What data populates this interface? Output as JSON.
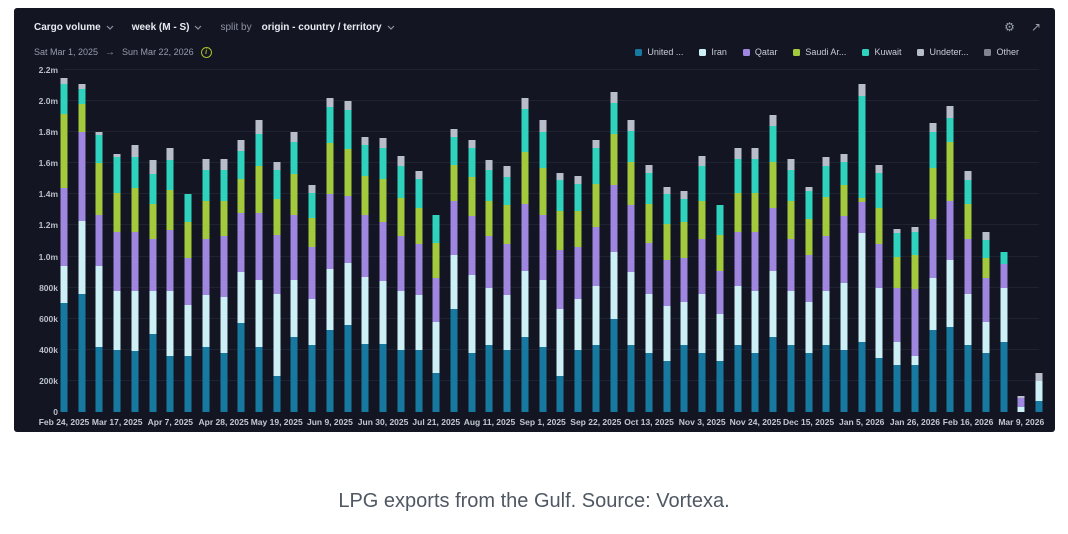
{
  "toolbar": {
    "metric": "Cargo volume",
    "granularity": "week (M - S)",
    "split_by_label": "split by",
    "split_by_value": "origin - country / territory"
  },
  "icons": {
    "gear": "⚙",
    "expand": "↗",
    "info": "i",
    "arrow": "→"
  },
  "date_range": {
    "start": "Sat Mar 1, 2025",
    "end": "Sun Mar 22, 2026"
  },
  "caption": "LPG exports from the Gulf. Source: Vortexa.",
  "colors": {
    "panel_bg": "#131622",
    "accent_green": "#a9bf2a"
  },
  "chart_data": {
    "type": "bar",
    "stacked": true,
    "title": "",
    "xlabel": "",
    "ylabel": "",
    "x_start": "Feb 24, 2025",
    "x_step": "1 week",
    "ylim": [
      0,
      2200000
    ],
    "y_unit_note": "values stored in thousands; axis shows k/m",
    "y_tick_labels": [
      "0",
      "200k",
      "400k",
      "600k",
      "800k",
      "1.0m",
      "1.2m",
      "1.4m",
      "1.6m",
      "1.8m",
      "2.0m",
      "2.2m"
    ],
    "x_tick_labels": [
      "Feb 24, 2025",
      "Mar 17, 2025",
      "Apr 7, 2025",
      "Apr 28, 2025",
      "May 19, 2025",
      "Jun 9, 2025",
      "Jun 30, 2025",
      "Jul 21, 2025",
      "Aug 11, 2025",
      "Sep 1, 2025",
      "Sep 22, 2025",
      "Oct 13, 2025",
      "Nov 3, 2025",
      "Nov 24, 2025",
      "Dec 15, 2025",
      "Jan 5, 2026",
      "Jan 26, 2026",
      "Feb 16, 2026",
      "Mar 9, 2026"
    ],
    "x_tick_every_n_bars": 3,
    "legend_position": "top-right",
    "series": [
      {
        "name": "United ...",
        "color": "#1779a0",
        "values": [
          700,
          760,
          420,
          400,
          390,
          500,
          360,
          360,
          420,
          380,
          570,
          420,
          230,
          480,
          430,
          530,
          560,
          440,
          440,
          400,
          400,
          250,
          660,
          380,
          430,
          400,
          480,
          420,
          230,
          400,
          430,
          600,
          430,
          380,
          330,
          430,
          380,
          330,
          430,
          380,
          480,
          430,
          380,
          430,
          400,
          450,
          350,
          300,
          300,
          530,
          550,
          430,
          380,
          450,
          0,
          70
        ]
      },
      {
        "name": "Iran",
        "color": "#cdeff6",
        "values": [
          240,
          470,
          520,
          380,
          390,
          280,
          420,
          330,
          330,
          360,
          330,
          430,
          530,
          370,
          300,
          390,
          400,
          430,
          400,
          380,
          350,
          330,
          350,
          500,
          370,
          350,
          430,
          430,
          430,
          330,
          380,
          430,
          470,
          380,
          350,
          280,
          380,
          300,
          380,
          400,
          430,
          350,
          330,
          350,
          430,
          700,
          450,
          150,
          60,
          330,
          430,
          330,
          200,
          350,
          30,
          130
        ]
      },
      {
        "name": "Qatar",
        "color": "#9f86de",
        "values": [
          500,
          570,
          330,
          380,
          380,
          330,
          390,
          300,
          360,
          390,
          380,
          430,
          380,
          420,
          330,
          480,
          430,
          400,
          380,
          350,
          330,
          280,
          350,
          380,
          330,
          330,
          430,
          420,
          380,
          330,
          380,
          430,
          430,
          330,
          300,
          280,
          350,
          280,
          350,
          380,
          400,
          330,
          300,
          350,
          430,
          200,
          280,
          350,
          430,
          380,
          380,
          350,
          280,
          150,
          60,
          0
        ]
      },
      {
        "name": "Saudi Ar...",
        "color": "#a3c93d",
        "values": [
          480,
          180,
          330,
          250,
          280,
          230,
          260,
          230,
          250,
          230,
          220,
          300,
          230,
          260,
          190,
          330,
          300,
          250,
          280,
          250,
          230,
          230,
          230,
          250,
          230,
          250,
          330,
          300,
          250,
          230,
          280,
          330,
          280,
          250,
          230,
          230,
          250,
          230,
          250,
          250,
          300,
          250,
          230,
          250,
          200,
          30,
          230,
          200,
          220,
          330,
          380,
          230,
          130,
          0,
          0,
          0
        ]
      },
      {
        "name": "Kuwait",
        "color": "#2fd3bd",
        "values": [
          190,
          100,
          180,
          230,
          200,
          190,
          190,
          180,
          200,
          200,
          180,
          210,
          190,
          210,
          160,
          230,
          250,
          200,
          200,
          200,
          190,
          180,
          180,
          190,
          200,
          180,
          280,
          230,
          200,
          180,
          230,
          200,
          200,
          200,
          190,
          150,
          220,
          190,
          220,
          220,
          230,
          200,
          180,
          200,
          150,
          650,
          230,
          150,
          150,
          230,
          150,
          150,
          120,
          80,
          0,
          0
        ]
      },
      {
        "name": "Undeter...",
        "color": "#b7bdc9",
        "values": [
          40,
          30,
          20,
          20,
          80,
          90,
          80,
          0,
          70,
          70,
          70,
          90,
          50,
          60,
          50,
          60,
          60,
          50,
          60,
          70,
          50,
          0,
          50,
          50,
          60,
          70,
          70,
          80,
          50,
          50,
          50,
          70,
          70,
          50,
          50,
          50,
          70,
          0,
          70,
          70,
          70,
          70,
          30,
          60,
          50,
          80,
          50,
          30,
          30,
          60,
          80,
          60,
          50,
          0,
          10,
          50
        ]
      },
      {
        "name": "Other",
        "color": "#80858f",
        "values": [
          0,
          0,
          0,
          0,
          0,
          0,
          0,
          0,
          0,
          0,
          0,
          0,
          0,
          0,
          0,
          0,
          0,
          0,
          0,
          0,
          0,
          0,
          0,
          0,
          0,
          0,
          0,
          0,
          0,
          0,
          0,
          0,
          0,
          0,
          0,
          0,
          0,
          0,
          0,
          0,
          0,
          0,
          0,
          0,
          0,
          0,
          0,
          0,
          0,
          0,
          0,
          0,
          0,
          0,
          0,
          0
        ]
      }
    ]
  }
}
